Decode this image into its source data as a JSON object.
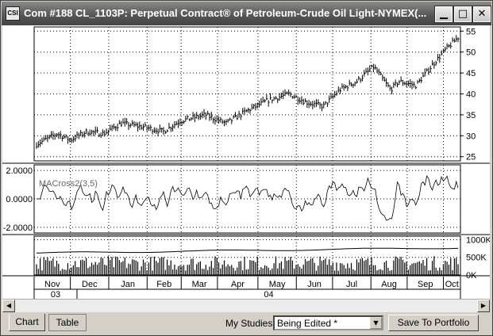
{
  "window": {
    "title": "Com #188 CL_1103P: Perpetual Contract® of Petroleum-Crude Oil Light-NYMEX(...",
    "icon_label": "CSI",
    "minimize_glyph": "▁",
    "maximize_glyph": "□",
    "close_glyph": "✕"
  },
  "scrollbar": {
    "left_glyph": "◀",
    "right_glyph": "▶"
  },
  "tabs": [
    {
      "label": "Chart"
    },
    {
      "label": "Table"
    }
  ],
  "studies": {
    "label": "My Studies:",
    "selected": "Being Edited *",
    "arrow_glyph": "▼"
  },
  "save_button": {
    "label": "Save To Portfolio"
  },
  "chart_data": [
    {
      "type": "bar",
      "panel": "price",
      "y_ticks": [
        "55",
        "50",
        "45",
        "40",
        "35",
        "30",
        "25"
      ],
      "y_values": [
        55,
        50,
        45,
        40,
        35,
        30,
        25
      ],
      "ylim": [
        24,
        56
      ],
      "grid": true,
      "series": [
        {
          "anchors_x": [
            0,
            0.05,
            0.08,
            0.12,
            0.16,
            0.2,
            0.26,
            0.3,
            0.34,
            0.4,
            0.45,
            0.5,
            0.55,
            0.6,
            0.64,
            0.68,
            0.72,
            0.76,
            0.8,
            0.84,
            0.86,
            0.9,
            0.94,
            0.97,
            1.0
          ],
          "anchors_y": [
            28,
            30.5,
            29,
            31,
            30.5,
            33,
            32,
            31,
            33.5,
            35,
            33,
            36,
            38.5,
            40,
            38,
            37,
            41,
            43,
            46.5,
            41,
            43,
            42,
            47,
            50.5,
            53.5
          ]
        }
      ]
    },
    {
      "type": "line",
      "panel": "oscillator",
      "title": "MACross2(3,5)",
      "y_ticks": [
        "2.0000",
        "0.0000",
        "-2.0000"
      ],
      "y_values": [
        2,
        0,
        -2
      ],
      "ylim": [
        -2.4,
        2.4
      ],
      "grid": true
    },
    {
      "type": "bar",
      "panel": "volume",
      "y_ticks": [
        "1000K",
        "500K",
        "0K"
      ],
      "y_values": [
        1000,
        500,
        0
      ],
      "ylim": [
        0,
        1100
      ],
      "grid": true
    }
  ],
  "x_axis": {
    "months": [
      "Nov",
      "Dec",
      "Jan",
      "Feb",
      "Mar",
      "Apr",
      "May",
      "Jun",
      "Jul",
      "Aug",
      "Sep",
      "Oct"
    ],
    "years": [
      "03",
      "04"
    ]
  }
}
